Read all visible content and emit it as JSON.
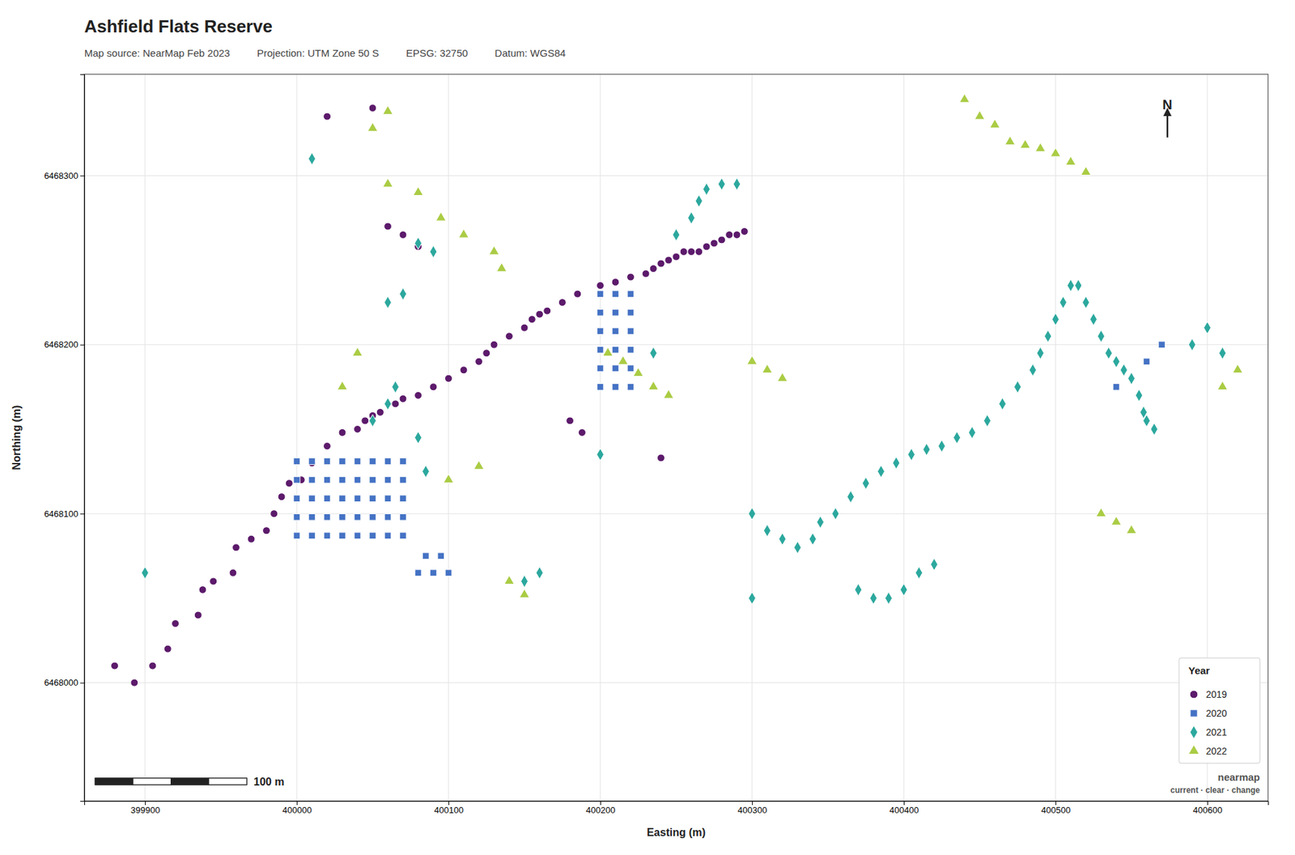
{
  "chart_data": {
    "type": "scatter",
    "title": "Ashfield Flats Reserve",
    "info_box": [
      "Map source: NearMap Feb 2023",
      "Projection: UTM Zone 50 S",
      "EPSG: 32750",
      "Datum: WGS84"
    ],
    "x_label": "Easting (m)",
    "y_label": "Northing (m)",
    "xlim": [
      399860,
      400640
    ],
    "ylim": [
      6467930,
      6468360
    ],
    "xticks": [
      399900,
      400000,
      400100,
      400200,
      400300,
      400400,
      400500,
      400600
    ],
    "yticks": [
      6468000,
      6468100,
      6468200,
      6468300
    ],
    "grid": true,
    "legend": "lower right",
    "legend_title": "Year",
    "north_label": "N",
    "logo": [
      "nearmap",
      "current · clear · change"
    ],
    "scale_bar": {
      "value": 100,
      "label": "100 m"
    },
    "series": [
      {
        "name": "2019",
        "color": "#5c1a6b",
        "marker": "circle",
        "x": [
          399880,
          399893,
          399905,
          399915,
          399920,
          399935,
          399938,
          399945,
          399958,
          399960,
          399970,
          399980,
          399985,
          399990,
          399995,
          400003,
          400010,
          400020,
          400030,
          400040,
          400045,
          400050,
          400055,
          400065,
          400070,
          400080,
          400090,
          400100,
          400110,
          400120,
          400125,
          400130,
          400140,
          400150,
          400155,
          400160,
          400165,
          400175,
          400185,
          400200,
          400210,
          400220,
          400230,
          400235,
          400240,
          400245,
          400250,
          400255,
          400260,
          400265,
          400270,
          400275,
          400280,
          400285,
          400290,
          400295,
          400060,
          400070,
          400080,
          400020,
          400050,
          400180,
          400188,
          400240
        ],
        "values": [
          6468010,
          6468000,
          6468010,
          6468020,
          6468035,
          6468040,
          6468055,
          6468060,
          6468065,
          6468080,
          6468085,
          6468090,
          6468100,
          6468110,
          6468118,
          6468120,
          6468130,
          6468140,
          6468148,
          6468150,
          6468155,
          6468158,
          6468160,
          6468165,
          6468168,
          6468170,
          6468175,
          6468180,
          6468185,
          6468190,
          6468195,
          6468200,
          6468205,
          6468210,
          6468215,
          6468218,
          6468220,
          6468225,
          6468230,
          6468235,
          6468237,
          6468240,
          6468242,
          6468245,
          6468248,
          6468250,
          6468252,
          6468255,
          6468255,
          6468255,
          6468258,
          6468260,
          6468262,
          6468265,
          6468265,
          6468267,
          6468270,
          6468265,
          6468258,
          6468335,
          6468340,
          6468155,
          6468148,
          6468133
        ]
      },
      {
        "name": "2020",
        "color": "#4472c4",
        "marker": "square",
        "x": [
          400000,
          400010,
          400020,
          400030,
          400040,
          400050,
          400060,
          400070,
          400000,
          400010,
          400020,
          400030,
          400040,
          400050,
          400060,
          400070,
          400000,
          400010,
          400020,
          400030,
          400040,
          400050,
          400060,
          400070,
          400000,
          400010,
          400020,
          400030,
          400040,
          400050,
          400060,
          400070,
          400000,
          400010,
          400020,
          400030,
          400040,
          400050,
          400060,
          400070,
          400080,
          400090,
          400100,
          400085,
          400095,
          400200,
          400210,
          400220,
          400200,
          400210,
          400220,
          400200,
          400210,
          400220,
          400200,
          400210,
          400220,
          400200,
          400210,
          400220,
          400200,
          400210,
          400220,
          400560,
          400570,
          400540
        ],
        "values": [
          6468087,
          6468087,
          6468087,
          6468087,
          6468087,
          6468087,
          6468087,
          6468087,
          6468098,
          6468098,
          6468098,
          6468098,
          6468098,
          6468098,
          6468098,
          6468098,
          6468109,
          6468109,
          6468109,
          6468109,
          6468109,
          6468109,
          6468109,
          6468109,
          6468120,
          6468120,
          6468120,
          6468120,
          6468120,
          6468120,
          6468120,
          6468120,
          6468131,
          6468131,
          6468131,
          6468131,
          6468131,
          6468131,
          6468131,
          6468131,
          6468065,
          6468065,
          6468065,
          6468075,
          6468075,
          6468175,
          6468175,
          6468175,
          6468186,
          6468186,
          6468186,
          6468197,
          6468197,
          6468197,
          6468208,
          6468208,
          6468208,
          6468219,
          6468219,
          6468219,
          6468230,
          6468230,
          6468230,
          6468190,
          6468200,
          6468175
        ]
      },
      {
        "name": "2021",
        "color": "#2ca89e",
        "marker": "diamond",
        "x": [
          399900,
          400010,
          400050,
          400060,
          400065,
          400080,
          400085,
          400200,
          400235,
          400250,
          400260,
          400265,
          400270,
          400280,
          400290,
          400300,
          400310,
          400320,
          400330,
          400340,
          400345,
          400355,
          400365,
          400375,
          400385,
          400395,
          400405,
          400415,
          400425,
          400435,
          400445,
          400455,
          400465,
          400475,
          400485,
          400490,
          400495,
          400500,
          400505,
          400510,
          400515,
          400520,
          400525,
          400530,
          400535,
          400540,
          400545,
          400550,
          400555,
          400558,
          400560,
          400565,
          400370,
          400380,
          400390,
          400400,
          400410,
          400420,
          400590,
          400600,
          400610,
          400300,
          400150,
          400160,
          400080,
          400090,
          400070,
          400060
        ],
        "values": [
          6468065,
          6468310,
          6468155,
          6468165,
          6468175,
          6468145,
          6468125,
          6468135,
          6468195,
          6468265,
          6468275,
          6468285,
          6468292,
          6468295,
          6468295,
          6468100,
          6468090,
          6468085,
          6468080,
          6468085,
          6468095,
          6468100,
          6468110,
          6468118,
          6468125,
          6468130,
          6468135,
          6468138,
          6468140,
          6468145,
          6468148,
          6468155,
          6468165,
          6468175,
          6468185,
          6468195,
          6468205,
          6468215,
          6468225,
          6468235,
          6468235,
          6468225,
          6468215,
          6468205,
          6468195,
          6468190,
          6468185,
          6468180,
          6468170,
          6468160,
          6468155,
          6468150,
          6468055,
          6468050,
          6468050,
          6468055,
          6468065,
          6468070,
          6468200,
          6468210,
          6468195,
          6468050,
          6468060,
          6468065,
          6468260,
          6468255,
          6468230,
          6468225
        ]
      },
      {
        "name": "2022",
        "color": "#aacc44",
        "marker": "triangle",
        "x": [
          400060,
          400080,
          400095,
          400110,
          400130,
          400135,
          400040,
          400030,
          400050,
          400060,
          400120,
          400100,
          400440,
          400450,
          400460,
          400470,
          400480,
          400490,
          400500,
          400510,
          400520,
          400530,
          400540,
          400550,
          400205,
          400215,
          400225,
          400235,
          400245,
          400300,
          400310,
          400320,
          400140,
          400150,
          400620,
          400610
        ],
        "values": [
          6468295,
          6468290,
          6468275,
          6468265,
          6468255,
          6468245,
          6468195,
          6468175,
          6468328,
          6468338,
          6468128,
          6468120,
          6468345,
          6468335,
          6468330,
          6468320,
          6468318,
          6468316,
          6468313,
          6468308,
          6468302,
          6468100,
          6468095,
          6468090,
          6468195,
          6468190,
          6468183,
          6468175,
          6468170,
          6468190,
          6468185,
          6468180,
          6468060,
          6468052,
          6468185,
          6468175
        ]
      }
    ]
  }
}
